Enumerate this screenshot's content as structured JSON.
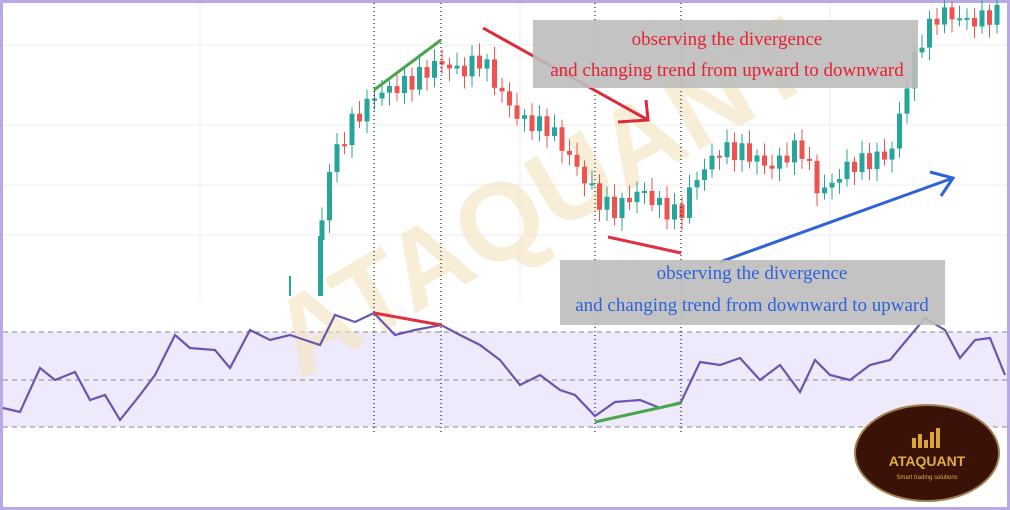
{
  "annotations": {
    "top": [
      "observing the divergence",
      "and changing trend from upward to downward"
    ],
    "bottom": [
      "observing the divergence",
      "and changing trend from downward to upward"
    ]
  },
  "watermark": "ATAQUANT",
  "logo": {
    "name": "ATAQUANT",
    "tagline": "Smart trading solutions"
  }
}
